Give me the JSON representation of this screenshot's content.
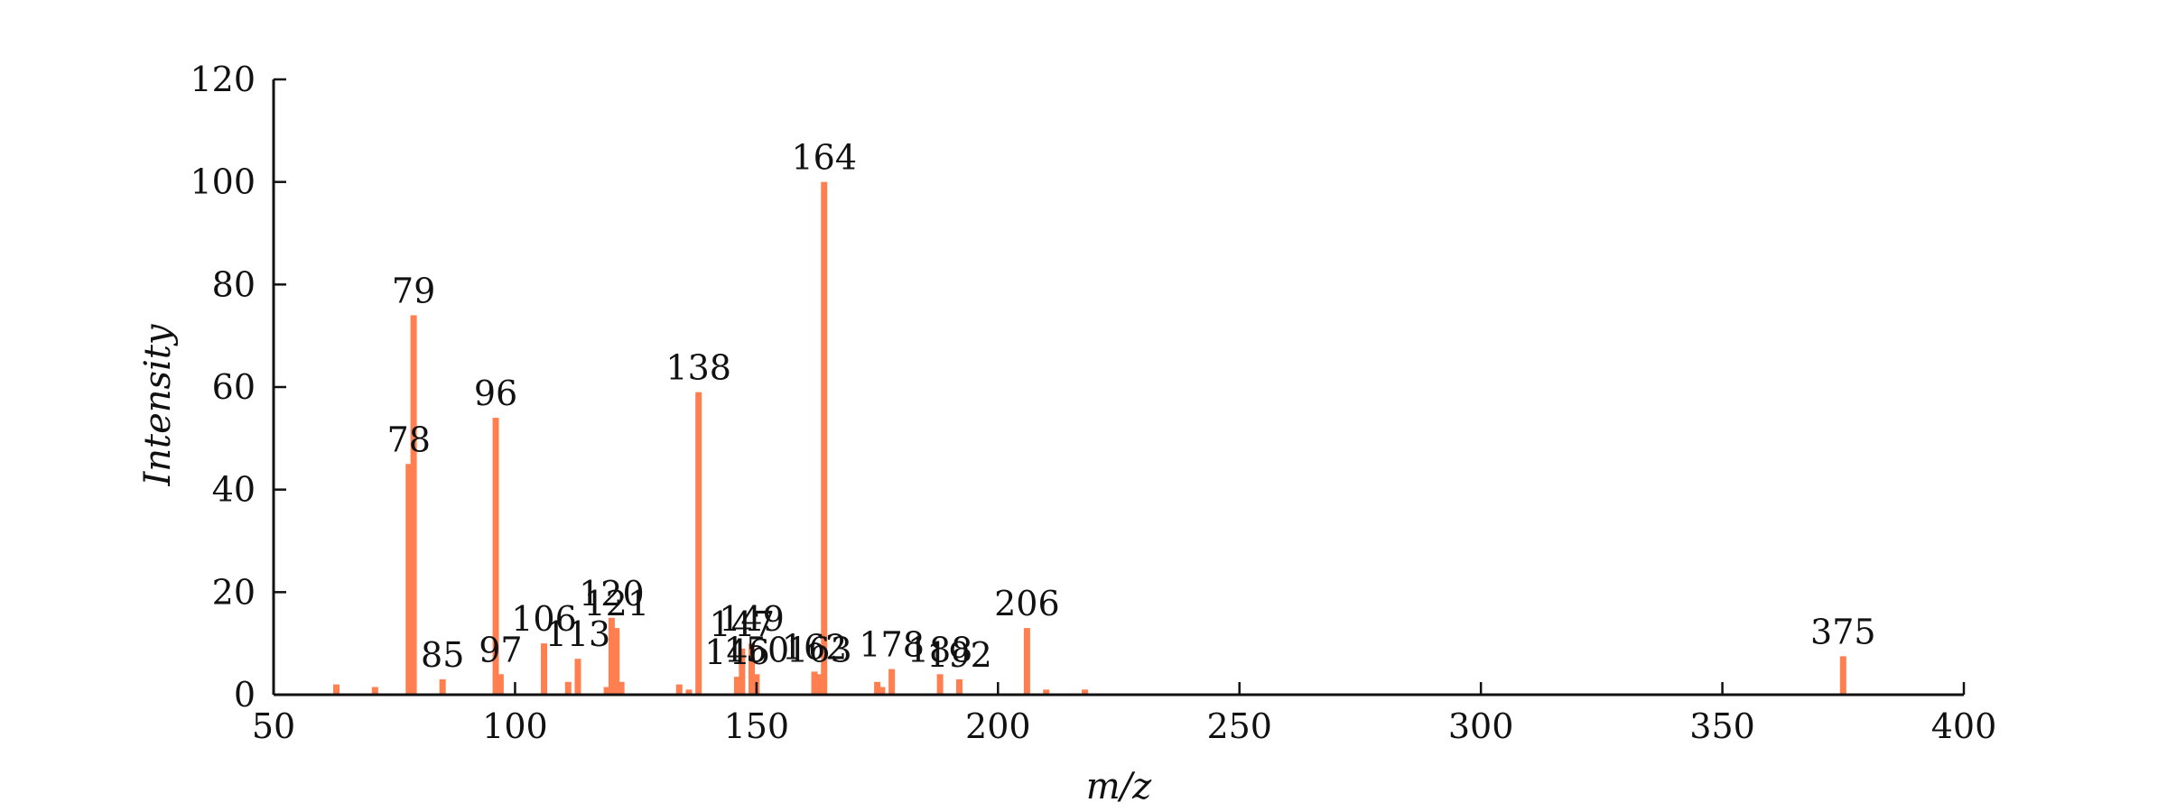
{
  "chart_data": {
    "type": "bar",
    "title": "",
    "xlabel": "m/z",
    "ylabel": "Intensity",
    "xlim": [
      50,
      400
    ],
    "ylim": [
      0,
      120
    ],
    "xticks": [
      50,
      100,
      150,
      200,
      250,
      300,
      350,
      400
    ],
    "yticks": [
      0,
      20,
      40,
      60,
      80,
      100,
      120
    ],
    "grid": false,
    "bar_color": "#ff7f50",
    "peaks": [
      {
        "x": 63,
        "y": 2,
        "label": ""
      },
      {
        "x": 71,
        "y": 1.5,
        "label": ""
      },
      {
        "x": 78,
        "y": 45,
        "label": "78"
      },
      {
        "x": 79,
        "y": 74,
        "label": "79"
      },
      {
        "x": 85,
        "y": 3,
        "label": "85"
      },
      {
        "x": 96,
        "y": 54,
        "label": "96"
      },
      {
        "x": 97,
        "y": 4,
        "label": "97"
      },
      {
        "x": 106,
        "y": 10,
        "label": "106"
      },
      {
        "x": 111,
        "y": 2.5,
        "label": ""
      },
      {
        "x": 113,
        "y": 7,
        "label": "113"
      },
      {
        "x": 119,
        "y": 1.5,
        "label": ""
      },
      {
        "x": 120,
        "y": 15,
        "label": "120"
      },
      {
        "x": 121,
        "y": 13,
        "label": "121"
      },
      {
        "x": 122,
        "y": 2.5,
        "label": ""
      },
      {
        "x": 134,
        "y": 2,
        "label": ""
      },
      {
        "x": 136,
        "y": 1,
        "label": ""
      },
      {
        "x": 138,
        "y": 59,
        "label": "138"
      },
      {
        "x": 146,
        "y": 3.5,
        "label": "146"
      },
      {
        "x": 147,
        "y": 9,
        "label": "147"
      },
      {
        "x": 149,
        "y": 10,
        "label": "149"
      },
      {
        "x": 150,
        "y": 4,
        "label": "150"
      },
      {
        "x": 162,
        "y": 4.5,
        "label": "162"
      },
      {
        "x": 163,
        "y": 4,
        "label": "163"
      },
      {
        "x": 164,
        "y": 100,
        "label": "164"
      },
      {
        "x": 175,
        "y": 2.5,
        "label": ""
      },
      {
        "x": 176,
        "y": 1.5,
        "label": ""
      },
      {
        "x": 178,
        "y": 5,
        "label": "178"
      },
      {
        "x": 188,
        "y": 4,
        "label": "188"
      },
      {
        "x": 192,
        "y": 3,
        "label": "192"
      },
      {
        "x": 206,
        "y": 13,
        "label": "206"
      },
      {
        "x": 210,
        "y": 1,
        "label": ""
      },
      {
        "x": 218,
        "y": 1,
        "label": ""
      },
      {
        "x": 375,
        "y": 7.5,
        "label": "375"
      }
    ]
  }
}
